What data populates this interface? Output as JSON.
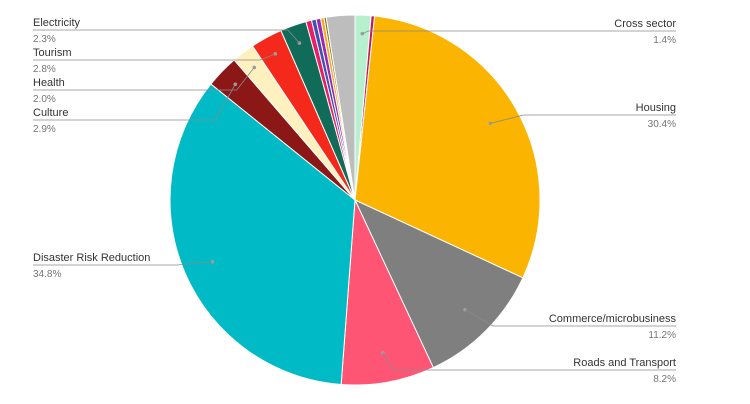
{
  "chart_data": {
    "type": "pie",
    "title": "",
    "slices": [
      {
        "label": "Cross sector",
        "value_text": "1.4%",
        "value": 1.4,
        "color": "#b7f0cf",
        "labeled": true,
        "side": "right"
      },
      {
        "label": "",
        "value": 0.3,
        "color": "#c2185b",
        "labeled": false
      },
      {
        "label": "Housing",
        "value_text": "30.4%",
        "value": 30.4,
        "color": "#fbb400",
        "labeled": true,
        "side": "right"
      },
      {
        "label": "Commerce/microbusiness",
        "value_text": "11.2%",
        "value": 11.2,
        "color": "#7f7f7f",
        "labeled": true,
        "side": "right"
      },
      {
        "label": "Roads and Transport",
        "value_text": "8.2%",
        "value": 8.2,
        "color": "#fd5573",
        "labeled": true,
        "side": "right"
      },
      {
        "label": "Disaster Risk Reduction",
        "value_text": "34.8%",
        "value": 34.8,
        "color": "#00bac6",
        "labeled": true,
        "side": "left"
      },
      {
        "label": "Culture",
        "value_text": "2.9%",
        "value": 2.9,
        "color": "#8b1717",
        "labeled": true,
        "side": "left"
      },
      {
        "label": "Health",
        "value_text": "2.0%",
        "value": 2.0,
        "color": "#fff0c0",
        "labeled": true,
        "side": "left"
      },
      {
        "label": "Tourism",
        "value_text": "2.8%",
        "value": 2.8,
        "color": "#f4281b",
        "labeled": true,
        "side": "left"
      },
      {
        "label": "Electricity",
        "value_text": "2.3%",
        "value": 2.3,
        "color": "#106b59",
        "labeled": true,
        "side": "left"
      },
      {
        "label": "",
        "value": 0.5,
        "color": "#e91e63",
        "labeled": false
      },
      {
        "label": "",
        "value": 0.4,
        "color": "#3f51b5",
        "labeled": false
      },
      {
        "label": "",
        "value": 0.4,
        "color": "#9c27b0",
        "labeled": false
      },
      {
        "label": "",
        "value": 0.3,
        "color": "#f9a825",
        "labeled": false
      },
      {
        "label": "",
        "value": 0.2,
        "color": "#827717",
        "labeled": false
      },
      {
        "label": "",
        "value": 2.5,
        "color": "#bdbdbd",
        "labeled": false
      }
    ]
  }
}
